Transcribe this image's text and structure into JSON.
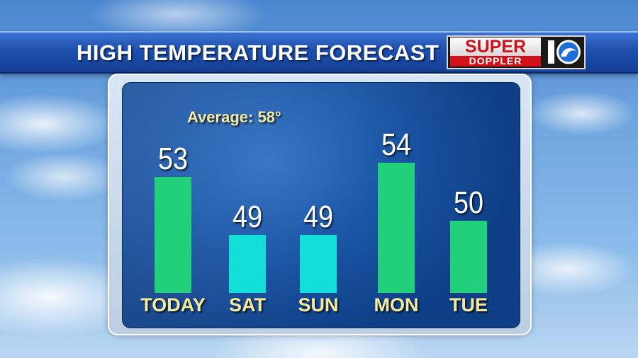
{
  "header": {
    "title": "HIGH TEMPERATURE FORECAST",
    "logo_super": "SUPER",
    "logo_doppler": "DOPPLER",
    "logo_number": "10"
  },
  "average_label": "Average: 58°",
  "colors": {
    "green_bar": "#22cf7a",
    "cyan_bar": "#12e0d8",
    "label_yellow": "#f3eaa0"
  },
  "chart_data": {
    "type": "bar",
    "title": "HIGH TEMPERATURE FORECAST",
    "categories": [
      "TODAY",
      "SAT",
      "SUN",
      "MON",
      "TUE"
    ],
    "values": [
      53,
      49,
      49,
      54,
      50
    ],
    "bar_colors": [
      "#22cf7a",
      "#12e0d8",
      "#12e0d8",
      "#22cf7a",
      "#22cf7a"
    ],
    "annotation": "Average: 58°",
    "grid": false,
    "legend": "none"
  }
}
